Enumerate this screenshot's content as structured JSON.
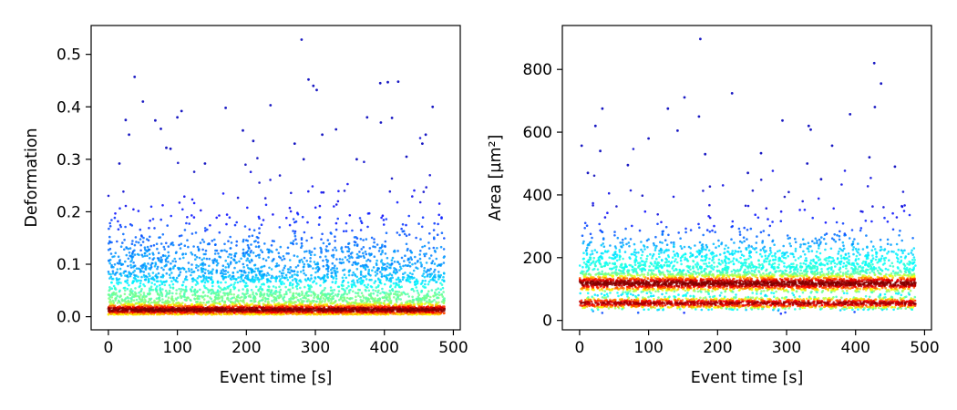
{
  "chart_data": [
    {
      "type": "scatter",
      "title": "",
      "xlabel": "Event time [s]",
      "ylabel": "Deformation",
      "xlim": [
        -25,
        510
      ],
      "ylim": [
        -0.025,
        0.555
      ],
      "xticks": [
        0,
        100,
        200,
        300,
        400,
        500
      ],
      "yticks": [
        0.0,
        0.1,
        0.2,
        0.3,
        0.4,
        0.5
      ],
      "ytick_labels": [
        "0.0",
        "0.1",
        "0.2",
        "0.3",
        "0.4",
        "0.5"
      ],
      "colormap": "jet (point density)",
      "grid": false,
      "legend": "none",
      "density_bands": [
        {
          "y_center": 0.013,
          "spread": 0.006,
          "weight": 0.45
        },
        {
          "y_center": 0.035,
          "spread": 0.02,
          "weight": 0.3
        },
        {
          "y_center": 0.09,
          "spread": 0.05,
          "weight": 0.25
        }
      ],
      "points": [
        {
          "x": 280,
          "y": 0.528
        },
        {
          "x": 38,
          "y": 0.457
        },
        {
          "x": 50,
          "y": 0.41
        },
        {
          "x": 290,
          "y": 0.452
        },
        {
          "x": 297,
          "y": 0.44
        },
        {
          "x": 302,
          "y": 0.432
        },
        {
          "x": 394,
          "y": 0.445
        },
        {
          "x": 405,
          "y": 0.447
        },
        {
          "x": 420,
          "y": 0.448
        },
        {
          "x": 470,
          "y": 0.4
        },
        {
          "x": 106,
          "y": 0.392
        },
        {
          "x": 100,
          "y": 0.38
        },
        {
          "x": 170,
          "y": 0.398
        },
        {
          "x": 235,
          "y": 0.403
        },
        {
          "x": 25,
          "y": 0.375
        },
        {
          "x": 68,
          "y": 0.374
        },
        {
          "x": 411,
          "y": 0.379
        },
        {
          "x": 375,
          "y": 0.38
        },
        {
          "x": 30,
          "y": 0.347
        },
        {
          "x": 76,
          "y": 0.358
        },
        {
          "x": 310,
          "y": 0.347
        },
        {
          "x": 330,
          "y": 0.357
        },
        {
          "x": 395,
          "y": 0.37
        },
        {
          "x": 460,
          "y": 0.347
        },
        {
          "x": 195,
          "y": 0.355
        },
        {
          "x": 210,
          "y": 0.335
        },
        {
          "x": 84,
          "y": 0.322
        },
        {
          "x": 90,
          "y": 0.32
        },
        {
          "x": 270,
          "y": 0.33
        },
        {
          "x": 455,
          "y": 0.33
        },
        {
          "x": 16,
          "y": 0.292
        },
        {
          "x": 140,
          "y": 0.292
        },
        {
          "x": 283,
          "y": 0.3
        },
        {
          "x": 432,
          "y": 0.305
        },
        {
          "x": 360,
          "y": 0.3
        }
      ]
    },
    {
      "type": "scatter",
      "title": "",
      "xlabel": "Event time [s]",
      "ylabel": "Area [µm²]",
      "xlim": [
        -25,
        510
      ],
      "ylim": [
        -30,
        940
      ],
      "xticks": [
        0,
        100,
        200,
        300,
        400,
        500
      ],
      "yticks": [
        0,
        200,
        400,
        600,
        800
      ],
      "ytick_labels": [
        "0",
        "200",
        "400",
        "600",
        "800"
      ],
      "colormap": "jet (point density)",
      "grid": false,
      "legend": "none",
      "density_bands": [
        {
          "y_center": 118,
          "spread": 14,
          "weight": 0.42
        },
        {
          "y_center": 55,
          "spread": 10,
          "weight": 0.3
        },
        {
          "y_center": 170,
          "spread": 60,
          "weight": 0.28
        }
      ],
      "points": [
        {
          "x": 175,
          "y": 897
        },
        {
          "x": 427,
          "y": 820
        },
        {
          "x": 437,
          "y": 755
        },
        {
          "x": 221,
          "y": 724
        },
        {
          "x": 152,
          "y": 711
        },
        {
          "x": 33,
          "y": 675
        },
        {
          "x": 128,
          "y": 675
        },
        {
          "x": 428,
          "y": 680
        },
        {
          "x": 173,
          "y": 650
        },
        {
          "x": 392,
          "y": 657
        },
        {
          "x": 23,
          "y": 620
        },
        {
          "x": 142,
          "y": 605
        },
        {
          "x": 294,
          "y": 637
        },
        {
          "x": 332,
          "y": 620
        },
        {
          "x": 335,
          "y": 608
        },
        {
          "x": 100,
          "y": 580
        },
        {
          "x": 3,
          "y": 557
        },
        {
          "x": 366,
          "y": 557
        },
        {
          "x": 30,
          "y": 540
        },
        {
          "x": 420,
          "y": 520
        },
        {
          "x": 182,
          "y": 530
        },
        {
          "x": 263,
          "y": 533
        },
        {
          "x": 457,
          "y": 490
        },
        {
          "x": 330,
          "y": 500
        },
        {
          "x": 70,
          "y": 495
        },
        {
          "x": 12,
          "y": 470
        },
        {
          "x": 244,
          "y": 470
        },
        {
          "x": 350,
          "y": 450
        }
      ]
    }
  ]
}
